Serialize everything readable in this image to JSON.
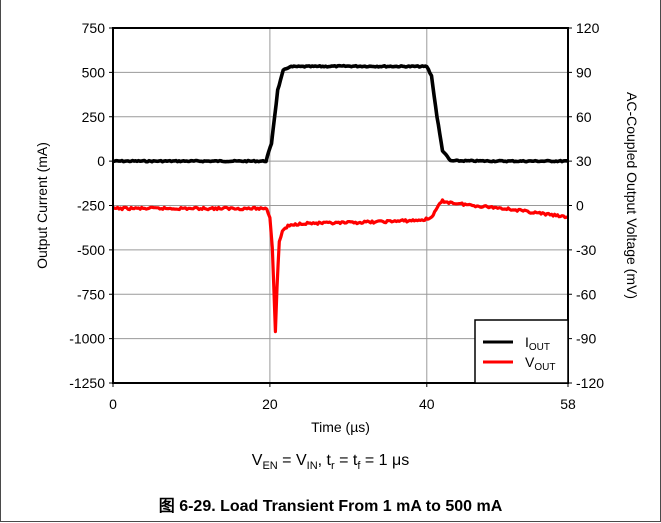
{
  "chart_data": {
    "type": "line",
    "xlabel": "Time (µs)",
    "ylabel_left": "Output Current (mA)",
    "ylabel_right": "AC-Coupled Output Voltage (mV)",
    "xlim": [
      0,
      58
    ],
    "x_ticks": [
      0,
      20,
      40,
      58
    ],
    "ylim_left": [
      -1250,
      750
    ],
    "y_ticks_left": [
      750,
      500,
      250,
      0,
      -250,
      -500,
      -750,
      -1000,
      -1250
    ],
    "ylim_right": [
      -120,
      120
    ],
    "y_ticks_right": [
      120,
      90,
      60,
      30,
      0,
      -30,
      -60,
      -90,
      -120
    ],
    "grid": "vertical and horizontal at tick marks",
    "legend_position": "bottom-right",
    "series": [
      {
        "name": "IOUT",
        "name_main": "I",
        "name_sub": "OUT",
        "axis": "left",
        "color": "#000000",
        "x": [
          0,
          19.5,
          20.2,
          21,
          21.7,
          22.5,
          30,
          40,
          40.6,
          41.3,
          42,
          43,
          50,
          58
        ],
        "y": [
          0,
          0,
          100,
          400,
          510,
          532,
          535,
          533,
          480,
          250,
          60,
          2,
          0,
          0
        ]
      },
      {
        "name": "VOUT",
        "name_main": "V",
        "name_sub": "OUT",
        "axis": "right",
        "color": "#ff0000",
        "x": [
          0,
          10,
          19.6,
          20.0,
          20.3,
          20.5,
          20.7,
          20.9,
          21.2,
          21.6,
          22.3,
          24,
          28,
          34,
          39,
          40.3,
          41,
          41.5,
          42,
          43,
          46,
          50,
          54,
          58
        ],
        "y": [
          -2,
          -2,
          -2,
          -8,
          -28,
          -55,
          -85,
          -55,
          -25,
          -17,
          -14,
          -12,
          -12,
          -11,
          -10,
          -9,
          -5,
          0,
          3,
          2,
          0,
          -2,
          -5,
          -8
        ]
      }
    ]
  },
  "condition": {
    "v1": "V",
    "v1_sub": "EN",
    "eq1": " = V",
    "v2_sub": "IN",
    "comma1": ", t",
    "tr_sub": "r",
    "eq2": " = t",
    "tf_sub": "f",
    "tail": " = 1 μs"
  },
  "caption": "图 6-29. Load Transient From 1 mA to 500 mA"
}
